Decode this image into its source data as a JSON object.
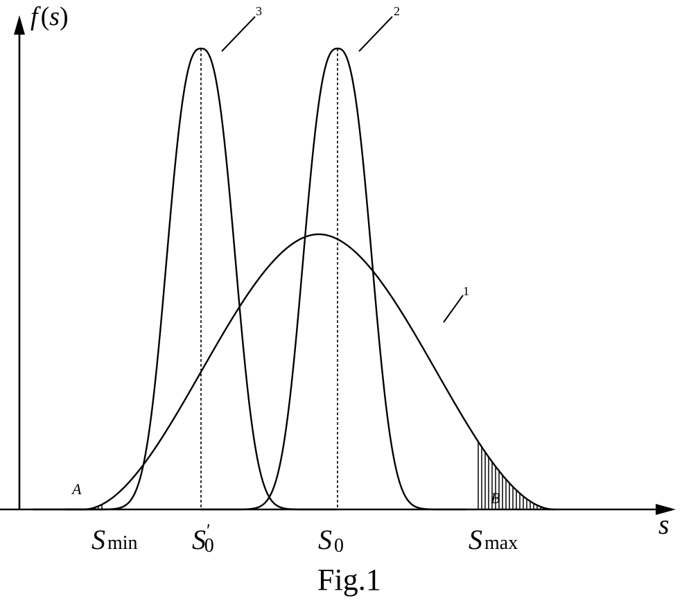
{
  "figure": {
    "caption": "Fig.1",
    "y_axis_label": {
      "f": "f",
      "open": "(",
      "var": "s",
      "close": ")"
    },
    "x_axis_label": "s",
    "x_ticks": [
      {
        "id": "smin",
        "main": "S",
        "sub": "min",
        "prime": ""
      },
      {
        "id": "s0prime",
        "main": "S",
        "sub": "0",
        "prime": "′"
      },
      {
        "id": "s0",
        "main": "S",
        "sub": "0",
        "prime": ""
      },
      {
        "id": "smax",
        "main": "S",
        "sub": "max",
        "prime": ""
      }
    ],
    "curve_labels": {
      "curve1": "1",
      "curve2": "2",
      "curve3": "3"
    },
    "regions": {
      "left_tail": "A",
      "right_tail": "B"
    },
    "colors": {
      "ink": "#000000",
      "paper": "#ffffff"
    }
  }
}
